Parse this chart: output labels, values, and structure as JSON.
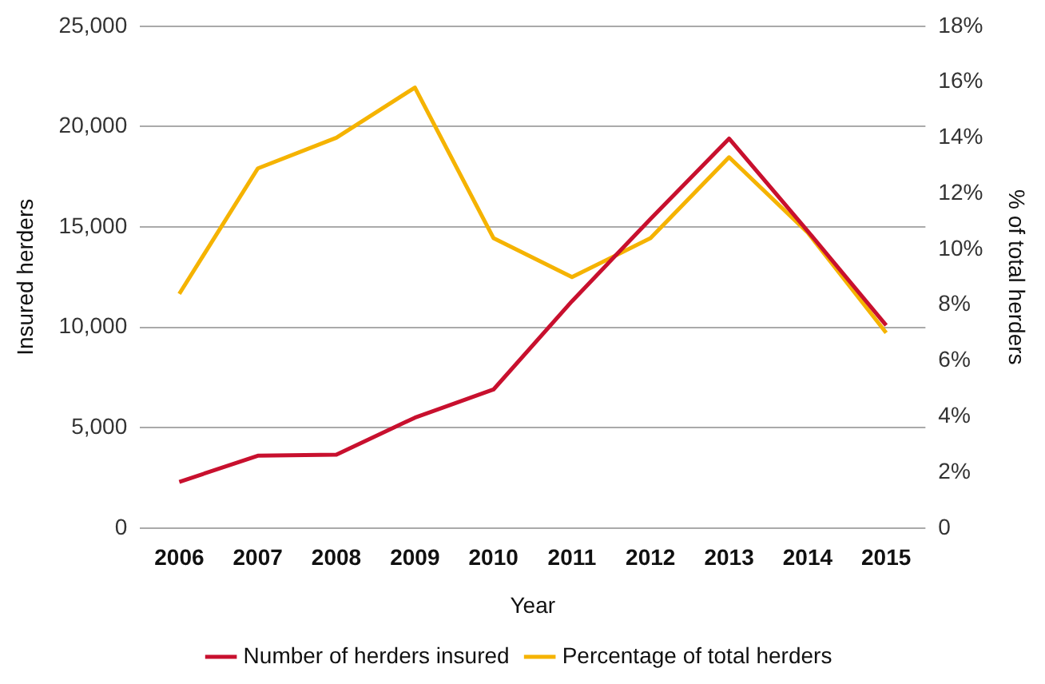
{
  "chart_data": {
    "type": "line",
    "xlabel": "Year",
    "ylabel": "Insured herders",
    "y2label": "% of total herders",
    "categories": [
      "2006",
      "2007",
      "2008",
      "2009",
      "2010",
      "2011",
      "2012",
      "2013",
      "2014",
      "2015"
    ],
    "series": [
      {
        "name": "Number of herders insured",
        "color": "#c8102e",
        "values": [
          2300,
          3600,
          3650,
          5500,
          6900,
          11300,
          15400,
          19400,
          14800,
          10100
        ]
      },
      {
        "name": "Percentage of total herders",
        "color": "#f5b300",
        "axis": "y2",
        "values": [
          8.4,
          12.9,
          14.0,
          15.8,
          10.4,
          9.0,
          10.4,
          13.3,
          10.6,
          7.0
        ]
      }
    ],
    "ylim": [
      0,
      25000
    ],
    "yticks": [
      0,
      {
        "value": 5000,
        "label": "5,000"
      },
      {
        "value": 10000,
        "label": "10,000"
      },
      {
        "value": 15000,
        "label": "15,000"
      },
      {
        "value": 20000,
        "label": "20,000"
      },
      {
        "value": 25000,
        "label": "25,000"
      }
    ],
    "y2lim": [
      0,
      18
    ],
    "y2ticks": [
      0,
      {
        "value": 2,
        "label": "2%"
      },
      {
        "value": 4,
        "label": "4%"
      },
      {
        "value": 6,
        "label": "6%"
      },
      {
        "value": 8,
        "label": "8%"
      },
      {
        "value": 10,
        "label": "10%"
      },
      {
        "value": 12,
        "label": "12%"
      },
      {
        "value": 14,
        "label": "14%"
      },
      {
        "value": 16,
        "label": "16%"
      },
      {
        "value": 18,
        "label": "18%"
      }
    ],
    "grid": "y",
    "legend": "bottom",
    "marker": "none",
    "line_style": "solid"
  }
}
